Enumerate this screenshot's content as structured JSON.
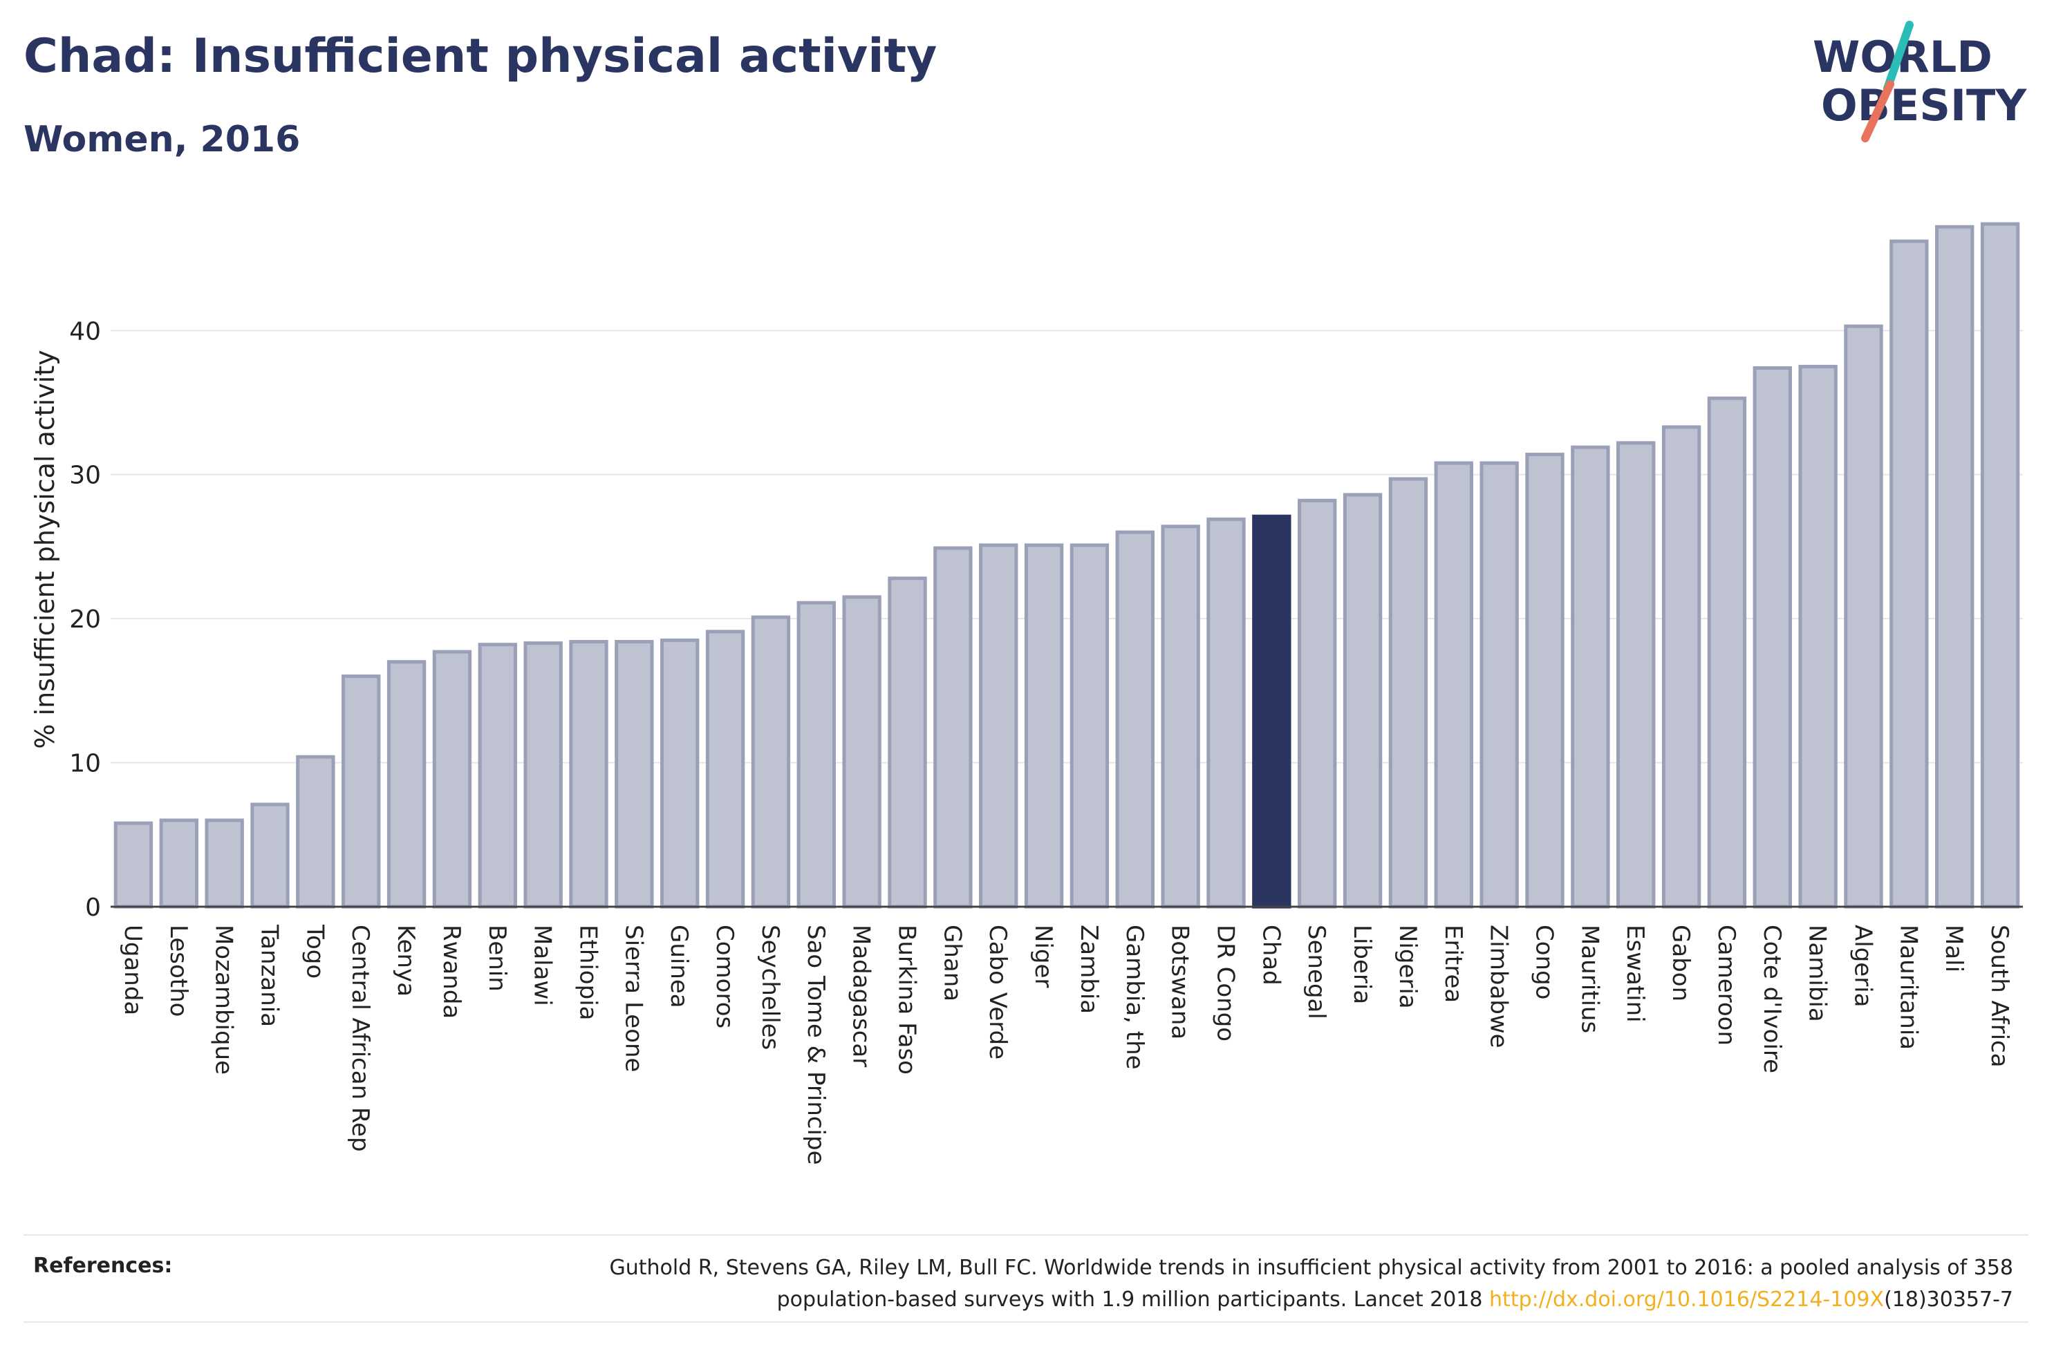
{
  "header": {
    "title": "Chad: Insufficient physical activity",
    "subtitle": "Women, 2016"
  },
  "logo": {
    "line1": "WORLD",
    "line2": "OBESITY",
    "colors": {
      "text": "#2b3561",
      "slash_teal": "#2bbdb5",
      "slash_coral": "#e8735c"
    }
  },
  "chart_data": {
    "type": "bar",
    "title": "Chad: Insufficient physical activity",
    "subtitle": "Women, 2016",
    "xlabel": "",
    "ylabel": "% insufficient physical activity",
    "ylim": [
      0,
      47.5
    ],
    "yticks": [
      0,
      10,
      20,
      30,
      40
    ],
    "grid": true,
    "highlight": "Chad",
    "colors": {
      "bar_fill": "#bfc3d1",
      "bar_stroke": "#9aa0b8",
      "highlight_fill": "#2b3561",
      "grid": "#e6e6e6",
      "axis": "#444444"
    },
    "categories": [
      "Uganda",
      "Lesotho",
      "Mozambique",
      "Tanzania",
      "Togo",
      "Central African Rep",
      "Kenya",
      "Rwanda",
      "Benin",
      "Malawi",
      "Ethiopia",
      "Sierra Leone",
      "Guinea",
      "Comoros",
      "Seychelles",
      "Sao Tome & Principe",
      "Madagascar",
      "Burkina Faso",
      "Ghana",
      "Cabo Verde",
      "Niger",
      "Zambia",
      "Gambia, the",
      "Botswana",
      "DR Congo",
      "Chad",
      "Senegal",
      "Liberia",
      "Nigeria",
      "Eritrea",
      "Zimbabwe",
      "Congo",
      "Mauritius",
      "Eswatini",
      "Gabon",
      "Cameroon",
      "Cote d'Ivoire",
      "Namibia",
      "Algeria",
      "Mauritania",
      "Mali",
      "South Africa"
    ],
    "values": [
      5.8,
      6.0,
      6.0,
      7.1,
      10.4,
      16.0,
      17.0,
      17.7,
      18.2,
      18.3,
      18.4,
      18.4,
      18.5,
      19.1,
      20.1,
      21.1,
      21.5,
      22.8,
      24.9,
      25.1,
      25.1,
      25.1,
      26.0,
      26.4,
      26.9,
      27.1,
      28.2,
      28.6,
      29.7,
      30.8,
      30.8,
      31.4,
      31.9,
      32.2,
      33.3,
      35.3,
      37.4,
      37.5,
      40.3,
      46.2,
      47.2,
      47.4
    ]
  },
  "references": {
    "label": "References:",
    "line1": "Guthold R, Stevens GA, Riley LM, Bull FC. Worldwide trends in insufficient physical activity from 2001 to 2016: a pooled analysis of 358",
    "line2_prefix": "population-based surveys with 1.9 million participants. Lancet 2018 ",
    "link": "http://dx.doi.org/10.1016/S2214-109X",
    "line2_suffix": "(18)30357-7"
  }
}
